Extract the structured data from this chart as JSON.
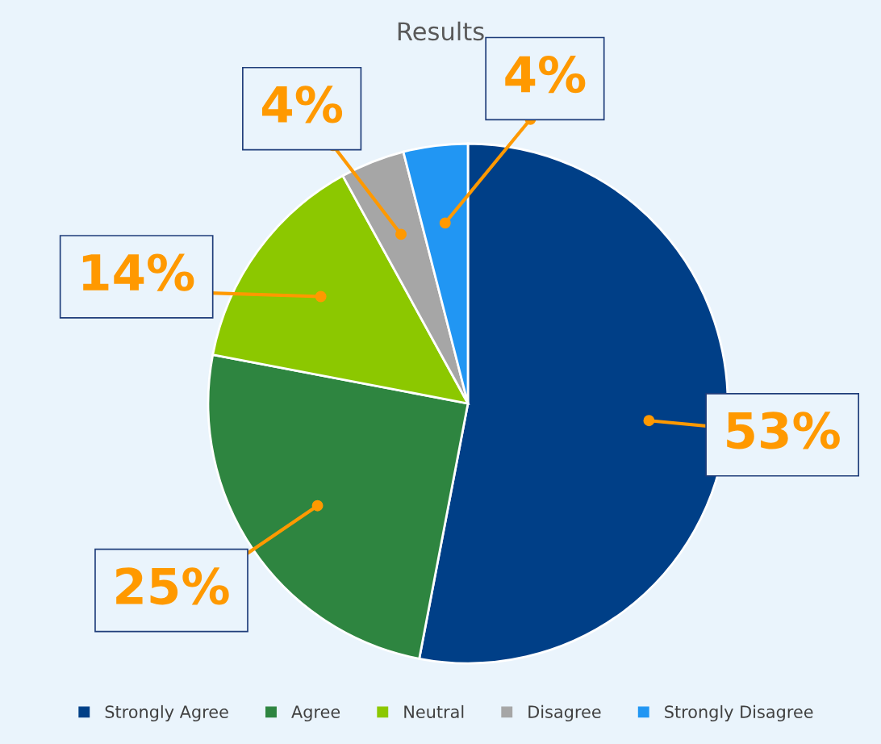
{
  "chart_data": {
    "type": "pie",
    "title": "Results",
    "categories": [
      "Strongly Agree",
      "Agree",
      "Neutral",
      "Disagree",
      "Strongly Disagree"
    ],
    "values": [
      53,
      25,
      14,
      4,
      4
    ],
    "colors": [
      "#003f87",
      "#2e8540",
      "#8cc800",
      "#a6a6a6",
      "#2196f3"
    ],
    "value_labels": [
      "53%",
      "25%",
      "14%",
      "4%",
      "4%"
    ],
    "legend": "bottom"
  }
}
